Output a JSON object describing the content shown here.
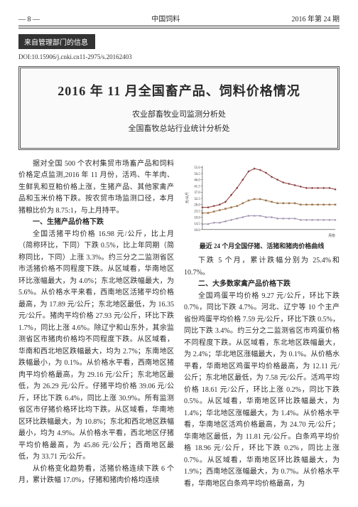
{
  "header": {
    "page_num": "— 8 —",
    "journal": "中国饲料",
    "issue": "2016 年第 24 期"
  },
  "section_tag": "来自管理部门的信息",
  "doi": "DOI:10.15906/j.cnki.cn11-2975/s.20162403",
  "title_box": {
    "title": "2016 年 11 月全国畜产品、饲料价格情况",
    "org1": "农业部畜牧业司监测分析处",
    "org2": "全国畜牧总站行业统计分析处"
  },
  "left_column": {
    "p1": "据对全国 500 个农村集贸市场畜产品和饲料价格定点监测,2016 年 11 月份，活鸡、牛羊肉、生鲜乳和豆粕价格上涨，生猪产品、其他家禽产品和玉米价格下跌。按农贸市场监测口径，本月猪粮比价为 8.75:1，与上月持平。",
    "h1": "一、生猪产品价格下跌",
    "p2": "全国活猪平均价格 16.98 元/公斤，比上月（简称环比，下同）下跌 0.5%，比上年同期（简称同比，下同）上涨 3.3%。约三分之二监测省区市活猪价格不同程度下跌。从区域看，华南地区环比涨幅最大，为 4.0%；东北地区跌幅最大，为 5.6%。从价格水平来看，西南地区活猪平均价格最高，为 17.89 元/公斤；东北地区最低，为 16.35 元/公斤。猪肉平均价格 27.93 元/公斤，环比下跌 1.7%，同比上涨 4.6%。除辽宁和山东外，其余监测省区市猪肉价格均不同程度下跌。从区域看，华南和西北地区跌幅最大，均为 2.7%；东南地区跌幅最小，为 0.1%。从价格水平看，西南地区猪肉平均价格最高，为 29.16 元/公斤；东北地区最低，为 26.29 元/公斤。仔猪平均价格 39.06 元/公斤，环比下跌 6.4%，同比上涨 30.9%。所有监测省区市仔猪价格环比均下跌。从区域看，华南地区环比跌幅最大，为 10.8%；东北和西北地区跌幅最小，均为 4.9%。从价格水平看，西北地区仔猪平均价格最高，为 45.86 元/公斤；西南地区最低，为 33.71 元/公斤。",
    "p3": "从价格变化趋势看，活猪价格连续下跌 6 个月，累计跌幅 17.0%，仔猪和猪肉价格均连续"
  },
  "chart": {
    "caption": "最近 24 个月全国仔猪、活猪和猪肉价格曲线",
    "x_labels": [
      "",
      "",
      "",
      "",
      "",
      "",
      "",
      "",
      "",
      "",
      "",
      "月份"
    ],
    "y_min": 10,
    "y_max": 56,
    "y_ticks": [
      10.0,
      14.5,
      19.0,
      23.5,
      28.0,
      32.5,
      37.0,
      41.5,
      46.0,
      50.5,
      55.0
    ],
    "y_label": "元/公斤",
    "background_color": "#ffffff",
    "grid_color": "#cccccc",
    "axis_color": "#333333",
    "series": [
      {
        "name": "仔猪",
        "color": "#8b3a3a",
        "marker": "diamond",
        "values": [
          26,
          26,
          27,
          28,
          30,
          35,
          40,
          46,
          52,
          54,
          53,
          51,
          48,
          46,
          44,
          43,
          42,
          41,
          40,
          40,
          40,
          40,
          40,
          39
        ]
      },
      {
        "name": "猪肉",
        "color": "#a07850",
        "marker": "square",
        "values": [
          22,
          22,
          23,
          24,
          25,
          26,
          27,
          29,
          31,
          32,
          32,
          31,
          30,
          29,
          29,
          29,
          29,
          28,
          28,
          28,
          28,
          28,
          28,
          28
        ]
      },
      {
        "name": "活猪",
        "color": "#9a8aa8",
        "marker": "triangle",
        "values": [
          14,
          14,
          15,
          15,
          16,
          17,
          18,
          19,
          20,
          20,
          20,
          19,
          19,
          18,
          18,
          18,
          18,
          17,
          17,
          17,
          17,
          17,
          17,
          17
        ]
      }
    ]
  },
  "right_column": {
    "p1": "下跌 5 个月，累计跌幅分别为 25.4%和 10.7%。",
    "h1": "二、大多数家禽产品价格下跌",
    "p2": "全国鸡蛋平均价格 9.27 元/公斤，环比下跌 0.7%，同比下跌 4.7%。河北、辽宁等 10 个主产省份鸡蛋平均价格 7.59 元/公斤，环比下跌 0.5%，同比下跌 3.4%。约三分之二监测省区市鸡蛋价格不同程度下跌。从区域看，东北地区跌幅最大，为 2.4%；华北地区涨幅最大，为 0.1%。从价格水平看，华南地区鸡蛋平均价格最高，为 12.11 元/公斤；东北地区最低，为 7.58 元/公斤。活鸡平均价格 18.61 元/公斤，环比上涨 0.2%，同比下跌 0.5%。从区域看，华南地区环比跌幅最大，为 1.4%；华北地区涨幅最大，为 1.4%。从价格水平看，华南地区活鸡价格最高，为 24.70 元/公斤；华南地区最低，为 11.81 元/公斤。白条鸡平均价格 18.96 元/公斤，环比下跌 0.2%，同比上涨 0.7%。从区域看，华南地区环比跌幅最大，为 1.9%；西南地区涨幅最大，为 0.7%。从价格水平看，华南地区白条鸡平均价格最高，为"
  }
}
